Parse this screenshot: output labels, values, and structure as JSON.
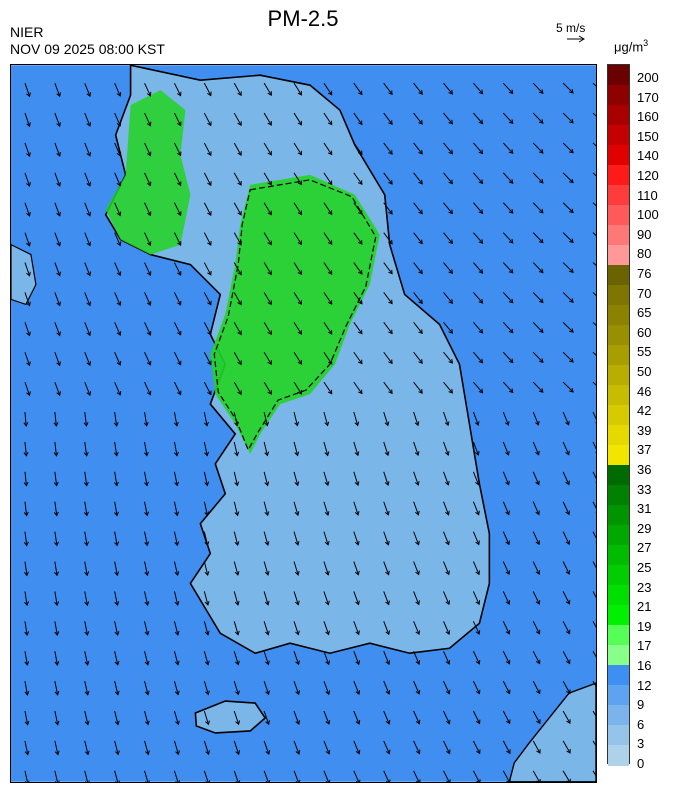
{
  "title": "PM-2.5",
  "agency": "NIER",
  "datetime": "NOV 09 2025 08:00 KST",
  "vector_scale": "5 m/s",
  "unit": {
    "base": "μg/m",
    "exp": "3"
  },
  "legend": {
    "labels": [
      "200",
      "170",
      "160",
      "150",
      "140",
      "120",
      "110",
      "100",
      "90",
      "80",
      "76",
      "70",
      "65",
      "60",
      "55",
      "50",
      "46",
      "42",
      "39",
      "37",
      "36",
      "33",
      "31",
      "29",
      "27",
      "25",
      "23",
      "21",
      "19",
      "17",
      "16",
      "12",
      "9",
      "6",
      "3",
      "0"
    ],
    "colors": [
      "#6b0000",
      "#8e0000",
      "#a80000",
      "#c40000",
      "#e00000",
      "#ff1a1a",
      "#ff3c3c",
      "#ff5a5a",
      "#ff7878",
      "#ff9999",
      "#6b6300",
      "#7e7600",
      "#8b8300",
      "#999000",
      "#a89e00",
      "#b8ad00",
      "#c8bc00",
      "#d7cb00",
      "#e6d900",
      "#f2e600",
      "#006b00",
      "#008100",
      "#009400",
      "#00a800",
      "#00bb00",
      "#00ce00",
      "#00e000",
      "#00f000",
      "#55ff55",
      "#88ff88",
      "#3d8ff2",
      "#5ea3f0",
      "#7bb3ec",
      "#96c3ea",
      "#aed2ea"
    ]
  },
  "map": {
    "sea_color": "#3f8ef0",
    "land_color": "#7ab6e8",
    "pm_high_color": "#22d422"
  }
}
